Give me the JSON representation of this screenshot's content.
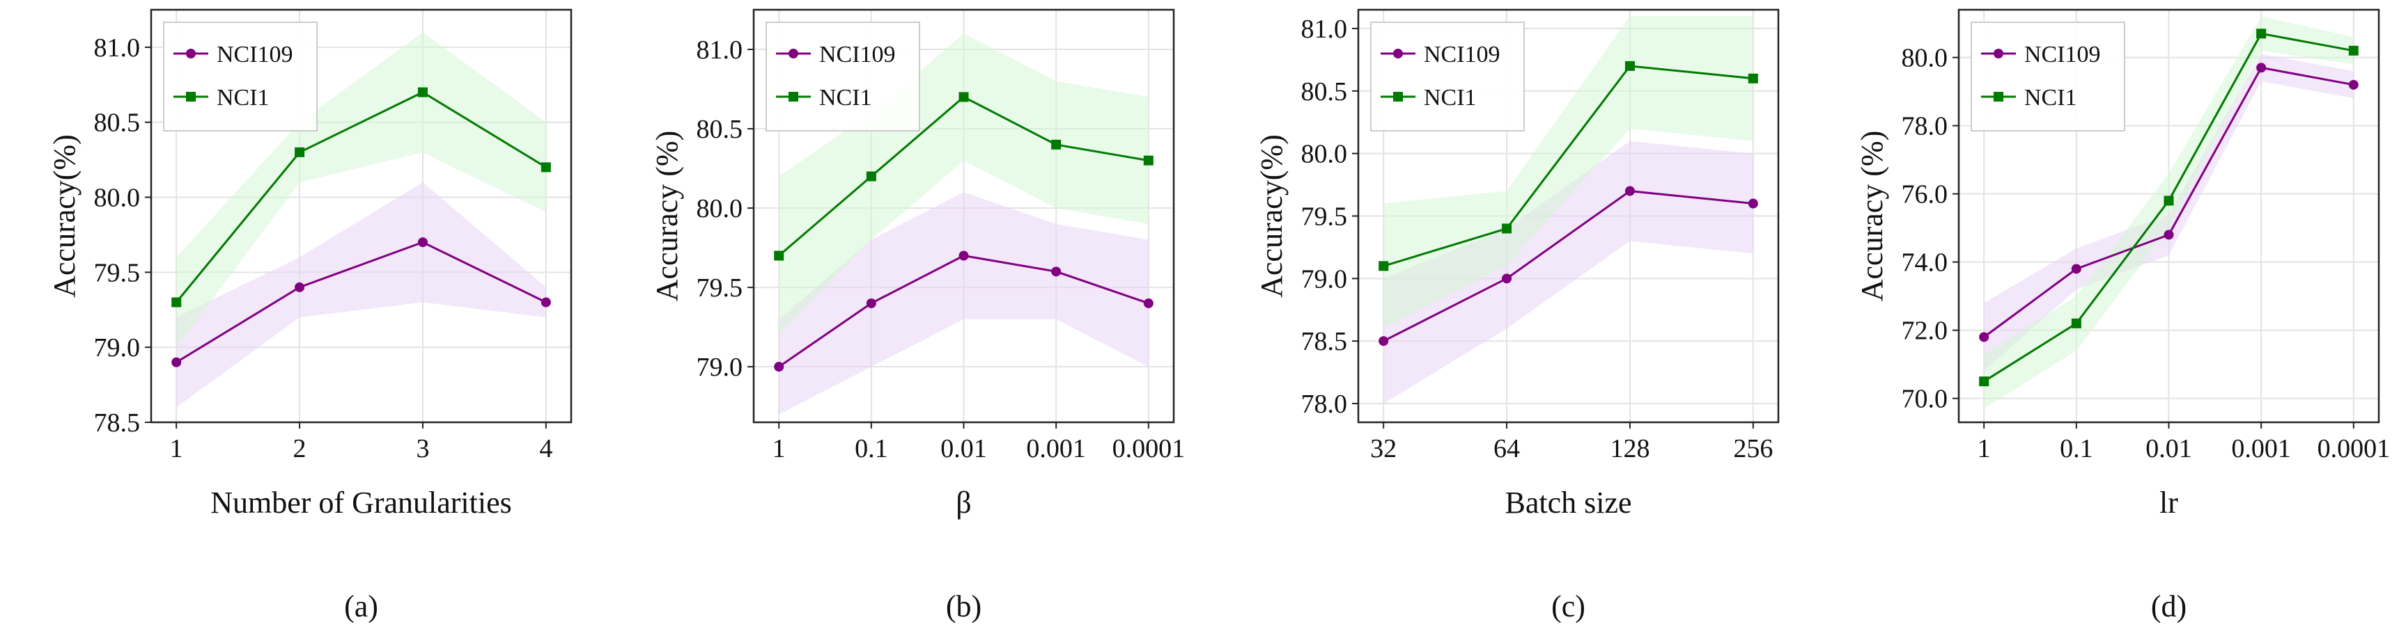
{
  "chart_data": [
    {
      "type": "line",
      "panel_label": "(a)",
      "title": "",
      "xlabel": "Number of Granularities",
      "ylabel": "Accuracy(%)",
      "categories": [
        "1",
        "2",
        "3",
        "4"
      ],
      "ylim": [
        78.5,
        81.25
      ],
      "yticks": [
        "78.5",
        "79.0",
        "79.5",
        "80.0",
        "80.5",
        "81.0"
      ],
      "legend_position": "top-left",
      "grid": true,
      "series": [
        {
          "name": "NCI109",
          "marker": "circle",
          "color": "#800080",
          "band_color": "#e9d3f6",
          "values": [
            78.9,
            79.4,
            79.7,
            79.3
          ],
          "lower": [
            78.6,
            79.2,
            79.3,
            79.2
          ],
          "upper": [
            79.2,
            79.6,
            80.1,
            79.4
          ]
        },
        {
          "name": "NCI1",
          "marker": "square",
          "color": "#007a00",
          "band_color": "#d6f6d6",
          "values": [
            79.3,
            80.3,
            80.7,
            80.2
          ],
          "lower": [
            79.0,
            80.1,
            80.3,
            79.9
          ],
          "upper": [
            79.6,
            80.5,
            81.1,
            80.5
          ]
        }
      ]
    },
    {
      "type": "line",
      "panel_label": "(b)",
      "title": "",
      "xlabel": "β",
      "ylabel": "Accuracy (%)",
      "categories": [
        "1",
        "0.1",
        "0.01",
        "0.001",
        "0.0001"
      ],
      "ylim": [
        78.65,
        81.25
      ],
      "yticks": [
        "79.0",
        "79.5",
        "80.0",
        "80.5",
        "81.0"
      ],
      "legend_position": "top-left",
      "grid": true,
      "series": [
        {
          "name": "NCI109",
          "marker": "circle",
          "color": "#800080",
          "band_color": "#e9d3f6",
          "values": [
            79.0,
            79.4,
            79.7,
            79.6,
            79.4
          ],
          "lower": [
            78.7,
            79.0,
            79.3,
            79.3,
            79.0
          ],
          "upper": [
            79.3,
            79.8,
            80.1,
            79.9,
            79.8
          ]
        },
        {
          "name": "NCI1",
          "marker": "square",
          "color": "#007a00",
          "band_color": "#d6f6d6",
          "values": [
            79.7,
            80.2,
            80.7,
            80.4,
            80.3
          ],
          "lower": [
            79.2,
            79.8,
            80.3,
            80.0,
            79.9
          ],
          "upper": [
            80.2,
            80.6,
            81.1,
            80.8,
            80.7
          ]
        }
      ]
    },
    {
      "type": "line",
      "panel_label": "(c)",
      "title": "",
      "xlabel": "Batch size",
      "ylabel": "Accuracy(%)",
      "categories": [
        "32",
        "64",
        "128",
        "256"
      ],
      "ylim": [
        77.85,
        81.15
      ],
      "yticks": [
        "78.0",
        "78.5",
        "79.0",
        "79.5",
        "80.0",
        "80.5",
        "81.0"
      ],
      "legend_position": "top-left",
      "grid": true,
      "series": [
        {
          "name": "NCI109",
          "marker": "circle",
          "color": "#800080",
          "band_color": "#e9d3f6",
          "values": [
            78.5,
            79.0,
            79.7,
            79.6
          ],
          "lower": [
            78.0,
            78.6,
            79.3,
            79.2
          ],
          "upper": [
            79.0,
            79.4,
            80.1,
            80.0
          ]
        },
        {
          "name": "NCI1",
          "marker": "square",
          "color": "#007a00",
          "band_color": "#d6f6d6",
          "values": [
            79.1,
            79.4,
            80.7,
            80.6
          ],
          "lower": [
            78.6,
            79.1,
            80.2,
            80.1
          ],
          "upper": [
            79.6,
            79.7,
            81.1,
            81.1
          ]
        }
      ]
    },
    {
      "type": "line",
      "panel_label": "(d)",
      "title": "",
      "xlabel": "lr",
      "ylabel": "Accuracy (%)",
      "categories": [
        "1",
        "0.1",
        "0.01",
        "0.001",
        "0.0001"
      ],
      "ylim": [
        69.3,
        81.4
      ],
      "yticks": [
        "70.0",
        "72.0",
        "74.0",
        "76.0",
        "78.0",
        "80.0"
      ],
      "legend_position": "top-left",
      "grid": true,
      "series": [
        {
          "name": "NCI109",
          "marker": "circle",
          "color": "#800080",
          "band_color": "#e9d3f6",
          "values": [
            71.8,
            73.8,
            74.8,
            79.7,
            79.2
          ],
          "lower": [
            70.8,
            73.2,
            74.2,
            79.3,
            78.8
          ],
          "upper": [
            72.8,
            74.4,
            75.4,
            80.1,
            79.6
          ]
        },
        {
          "name": "NCI1",
          "marker": "square",
          "color": "#007a00",
          "band_color": "#d6f6d6",
          "values": [
            70.5,
            72.2,
            75.8,
            80.7,
            80.2
          ],
          "lower": [
            69.7,
            71.4,
            75.0,
            80.2,
            79.8
          ],
          "upper": [
            71.3,
            73.0,
            76.6,
            81.2,
            80.6
          ]
        }
      ]
    }
  ]
}
